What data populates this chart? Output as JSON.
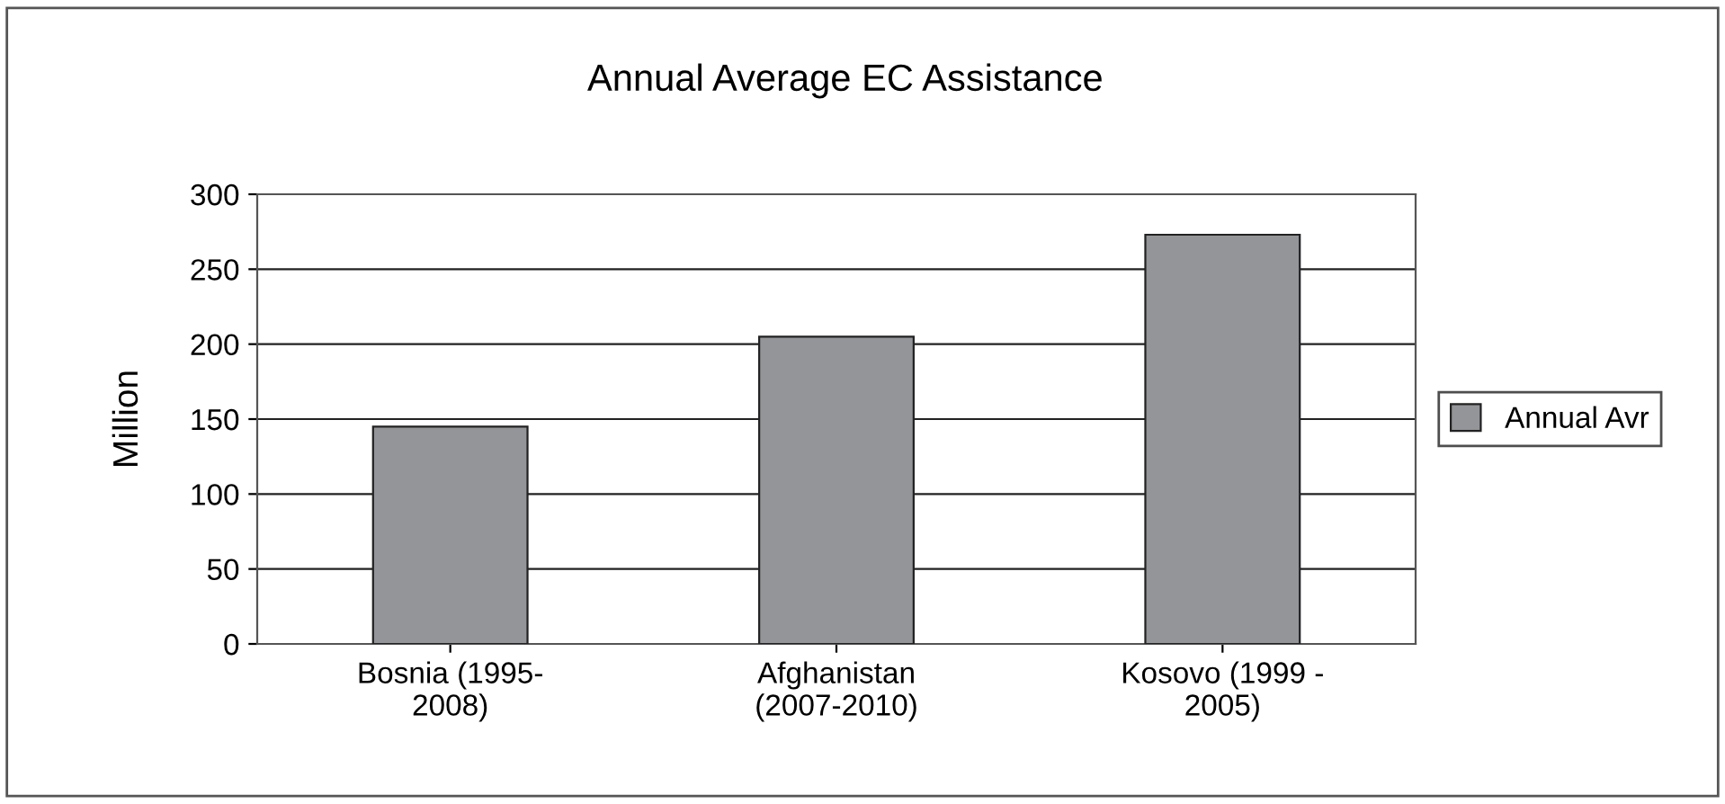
{
  "chart_data": {
    "type": "bar",
    "title": "Annual Average EC Assistance",
    "ylabel": "Million",
    "categories": [
      "Bosnia (1995-\n2008)",
      "Afghanistan\n(2007-2010)",
      "Kosovo (1999 -\n2005)"
    ],
    "series": [
      {
        "name": "Annual Avr",
        "color": "#939598",
        "values": [
          145,
          205,
          273
        ]
      }
    ],
    "ylim": [
      0,
      300
    ],
    "yticks": [
      0,
      50,
      100,
      150,
      200,
      250,
      300
    ],
    "grid": "y",
    "legend": "right"
  }
}
